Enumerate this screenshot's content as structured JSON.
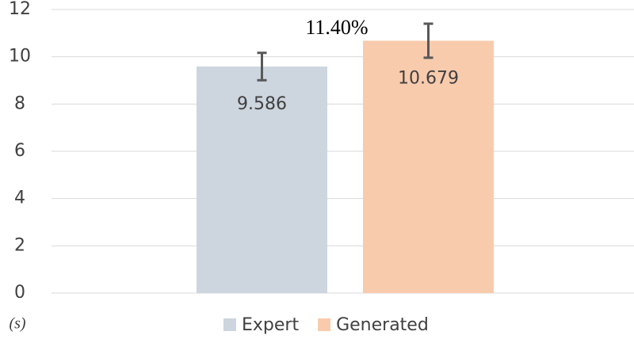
{
  "chart_data": {
    "type": "bar",
    "categories": [
      null
    ],
    "series": [
      {
        "name": "Expert",
        "color": "#cdd5df",
        "values": [
          9.586
        ],
        "errors": [
          0.58
        ]
      },
      {
        "name": "Generated",
        "color": "#f8cbad",
        "values": [
          10.679
        ],
        "errors": [
          0.72
        ]
      }
    ],
    "annotations": [
      "11.40%"
    ],
    "y_label": "(s)",
    "ylim": [
      0,
      12
    ],
    "yticks": [
      0,
      2,
      4,
      6,
      8,
      10,
      12
    ],
    "grid": true,
    "legend": "bottom"
  }
}
